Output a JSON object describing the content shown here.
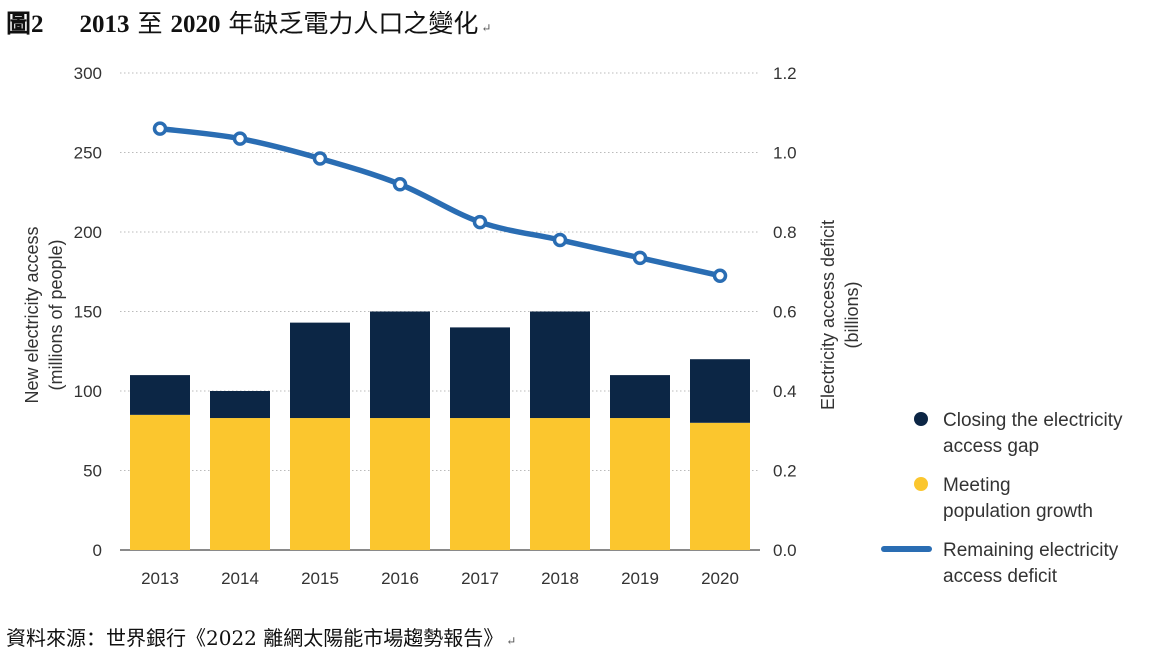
{
  "header": {
    "figure_no": "圖2",
    "title_year_start": "2013",
    "title_to": "至",
    "title_year_end": "2020",
    "title_rest": "年缺乏電力人口之變化",
    "para_mark": "↵"
  },
  "source": {
    "text": "資料來源：世界銀行《2022 離網太陽能市場趨勢報告》",
    "para_mark": "↵"
  },
  "colors": {
    "gap": "#0c2645",
    "growth": "#fbc62e",
    "deficit": "#2a6db3"
  },
  "chart_data": {
    "type": "bar",
    "categories": [
      "2013",
      "2014",
      "2015",
      "2016",
      "2017",
      "2018",
      "2019",
      "2020"
    ],
    "series": [
      {
        "name": "Meeting population growth",
        "type": "bar",
        "stack": "access",
        "axis": "left",
        "values": [
          85,
          83,
          83,
          83,
          83,
          83,
          83,
          80
        ]
      },
      {
        "name": "Closing the electricity access gap",
        "type": "bar",
        "stack": "access",
        "axis": "left",
        "values": [
          25,
          17,
          60,
          67,
          57,
          67,
          27,
          40
        ]
      },
      {
        "name": "Remaining electricity access deficit",
        "type": "line",
        "axis": "right",
        "values": [
          1.06,
          1.035,
          0.985,
          0.92,
          0.825,
          0.78,
          0.735,
          0.69
        ]
      }
    ],
    "ylabel": "New electricity access",
    "ylabel_sub": "(millions of people)",
    "y2label": "Electricity access deficit",
    "y2label_sub": "(billions)",
    "ylim": [
      0,
      300
    ],
    "y2lim": [
      0,
      1.2
    ],
    "yticks": [
      "0",
      "50",
      "100",
      "150",
      "200",
      "250",
      "300"
    ],
    "y2ticks": [
      "0.0",
      "0.2",
      "0.4",
      "0.6",
      "0.8",
      "1.0",
      "1.2"
    ],
    "grid": true,
    "legend_position": "right",
    "legend": {
      "gap_line1": "Closing the electricity",
      "gap_line2": "access gap",
      "growth_line1": "Meeting",
      "growth_line2": "population growth",
      "deficit_line1": "Remaining electricity",
      "deficit_line2": "access deficit"
    }
  }
}
